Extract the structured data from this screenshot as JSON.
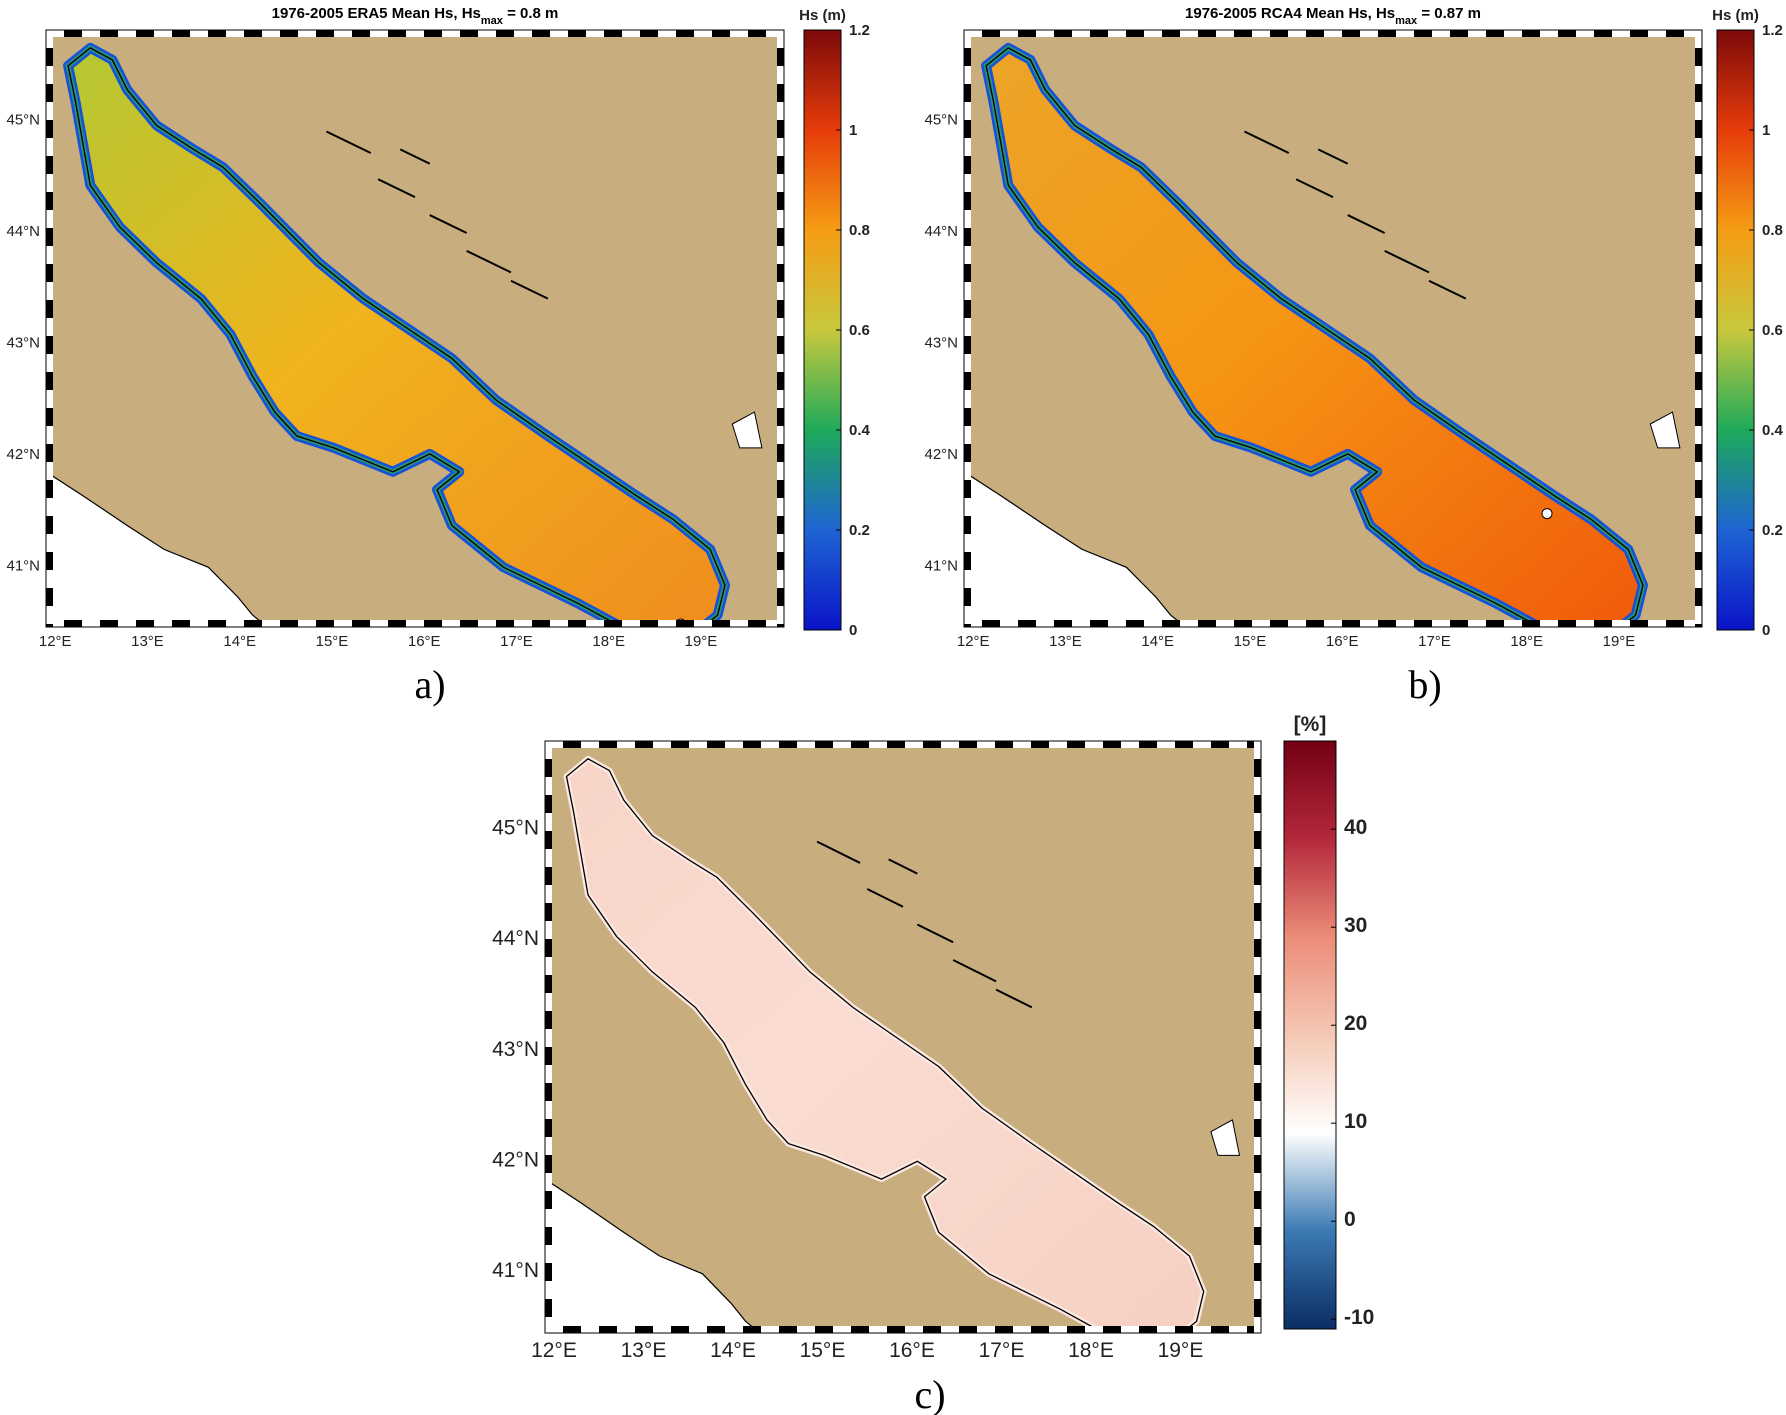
{
  "figure": {
    "panel_labels": [
      "a)",
      "b)",
      "c)"
    ]
  },
  "panels": [
    {
      "id": "a",
      "title": "1976-2005 ERA5   Mean Hs, Hs",
      "title_sub": "max",
      "title_tail": " = 0.8 m",
      "colorbar_label": "Hs (m)",
      "colorbar_ticks": [
        "0",
        "0.2",
        "0.4",
        "0.6",
        "0.8",
        "1",
        "1.2"
      ],
      "colormap": [
        "#0a14c8",
        "#1e64d2",
        "#1eaa5a",
        "#c8c83c",
        "#f59c14",
        "#e63c0a",
        "#7d0a0a"
      ],
      "lat_ticks": [
        "41°N",
        "42°N",
        "43°N",
        "44°N",
        "45°N"
      ],
      "lon_ticks": [
        "12°E",
        "13°E",
        "14°E",
        "15°E",
        "16°E",
        "17°E",
        "18°E",
        "19°E"
      ],
      "field": {
        "north": "#b4c832",
        "center": "#f0b41e",
        "south": "#f08c1e",
        "coast": "#1450dc",
        "mid": "#32aa50"
      },
      "max_marker_present": true
    },
    {
      "id": "b",
      "title": "1976-2005 RCA4   Mean Hs, Hs",
      "title_sub": "max",
      "title_tail": " = 0.87 m",
      "colorbar_label": "Hs (m)",
      "colorbar_ticks": [
        "0",
        "0.2",
        "0.4",
        "0.6",
        "0.8",
        "1",
        "1.2"
      ],
      "colormap": [
        "#0a14c8",
        "#1e64d2",
        "#1eaa5a",
        "#c8c83c",
        "#f59c14",
        "#e63c0a",
        "#7d0a0a"
      ],
      "lat_ticks": [
        "41°N",
        "42°N",
        "43°N",
        "44°N",
        "45°N"
      ],
      "lon_ticks": [
        "12°E",
        "13°E",
        "14°E",
        "15°E",
        "16°E",
        "17°E",
        "18°E",
        "19°E"
      ],
      "field": {
        "north": "#eba528",
        "center": "#f59614",
        "south": "#f05a0a",
        "coast": "#1450dc",
        "mid": "#32aa50"
      },
      "max_marker_present": true
    },
    {
      "id": "c",
      "title": "",
      "colorbar_label": "[%]",
      "colorbar_ticks": [
        "-10",
        "0",
        "10",
        "20",
        "30",
        "40"
      ],
      "colormap": [
        "#0a2d64",
        "#3c7ab4",
        "#ffffff",
        "#f5c8b4",
        "#eb8c78",
        "#b4283c",
        "#730014"
      ],
      "lat_ticks": [
        "41°N",
        "42°N",
        "43°N",
        "44°N",
        "45°N"
      ],
      "lon_ticks": [
        "12°E",
        "13°E",
        "14°E",
        "15°E",
        "16°E",
        "17°E",
        "18°E",
        "19°E"
      ],
      "field": {
        "north": "#f8d4c8",
        "center": "#fadcd2",
        "south": "#f6cfc2",
        "coast": "#fbe8e0",
        "mid": "#f7d6ca"
      },
      "max_marker_present": false
    }
  ],
  "map_colors": {
    "land": "#c8ad7f",
    "outside": "#ffffff",
    "coastline": "#000000"
  }
}
